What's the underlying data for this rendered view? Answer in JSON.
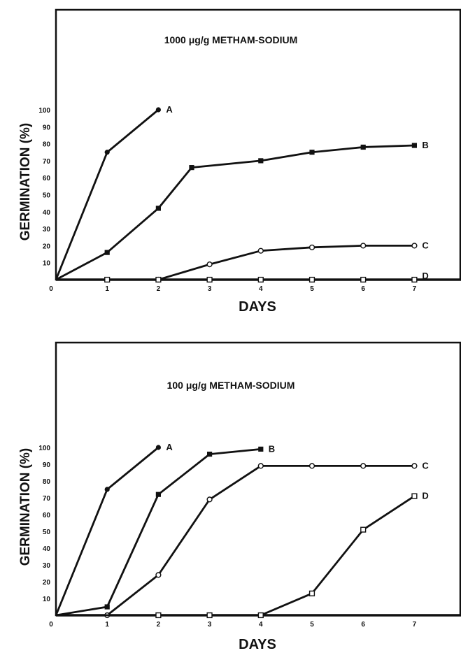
{
  "chart_data": [
    {
      "type": "line",
      "title": "1000  μg/g  METHAM-SODIUM",
      "xlabel": "DAYS",
      "ylabel": "GERMINATION (%)",
      "xlim": [
        0,
        7.85
      ],
      "ylim": [
        0,
        100
      ],
      "x_ticks": [
        "0",
        "1",
        "2",
        "3",
        "4",
        "5",
        "6",
        "7"
      ],
      "y_ticks": [
        "10",
        "20",
        "30",
        "40",
        "50",
        "60",
        "70",
        "80",
        "90",
        "100"
      ],
      "grid": false,
      "series": [
        {
          "name": "A",
          "marker": "filled-circle",
          "points": [
            [
              0,
              0
            ],
            [
              1,
              75
            ],
            [
              2,
              100
            ]
          ]
        },
        {
          "name": "B",
          "marker": "filled-square",
          "points": [
            [
              0,
              0
            ],
            [
              1,
              16
            ],
            [
              2,
              42
            ],
            [
              2.65,
              66
            ],
            [
              4,
              70
            ],
            [
              5,
              75
            ],
            [
              6,
              78
            ],
            [
              7,
              79
            ]
          ]
        },
        {
          "name": "C",
          "marker": "open-circle",
          "points": [
            [
              0,
              0
            ],
            [
              2,
              0
            ],
            [
              3,
              9
            ],
            [
              4,
              17
            ],
            [
              5,
              19
            ],
            [
              6,
              20
            ],
            [
              7,
              20
            ]
          ]
        },
        {
          "name": "D",
          "marker": "open-square",
          "points": [
            [
              0,
              0
            ],
            [
              1,
              0
            ],
            [
              2,
              0
            ],
            [
              3,
              0
            ],
            [
              4,
              0
            ],
            [
              5,
              0
            ],
            [
              6,
              0
            ],
            [
              7,
              0
            ]
          ]
        }
      ]
    },
    {
      "type": "line",
      "title": "100  μg/g  METHAM-SODIUM",
      "xlabel": "DAYS",
      "ylabel": "GERMINATION (%)",
      "xlim": [
        0,
        7.85
      ],
      "ylim": [
        0,
        100
      ],
      "x_ticks": [
        "0",
        "1",
        "2",
        "3",
        "4",
        "5",
        "6",
        "7"
      ],
      "y_ticks": [
        "10",
        "20",
        "30",
        "40",
        "50",
        "60",
        "70",
        "80",
        "90",
        "100"
      ],
      "grid": false,
      "series": [
        {
          "name": "A",
          "marker": "filled-circle",
          "points": [
            [
              0,
              0
            ],
            [
              1,
              75
            ],
            [
              2,
              100
            ]
          ]
        },
        {
          "name": "B",
          "marker": "filled-square",
          "points": [
            [
              0,
              0
            ],
            [
              1,
              5
            ],
            [
              2,
              72
            ],
            [
              3,
              96
            ],
            [
              4,
              99
            ]
          ]
        },
        {
          "name": "C",
          "marker": "open-circle",
          "points": [
            [
              0,
              0
            ],
            [
              1,
              0
            ],
            [
              2,
              24
            ],
            [
              3,
              69
            ],
            [
              4,
              89
            ],
            [
              5,
              89
            ],
            [
              6,
              89
            ],
            [
              7,
              89
            ]
          ]
        },
        {
          "name": "D",
          "marker": "open-square",
          "points": [
            [
              0,
              0
            ],
            [
              2,
              0
            ],
            [
              3,
              0
            ],
            [
              4,
              0
            ],
            [
              5,
              13
            ],
            [
              6,
              51
            ],
            [
              7,
              71
            ]
          ]
        }
      ]
    }
  ]
}
